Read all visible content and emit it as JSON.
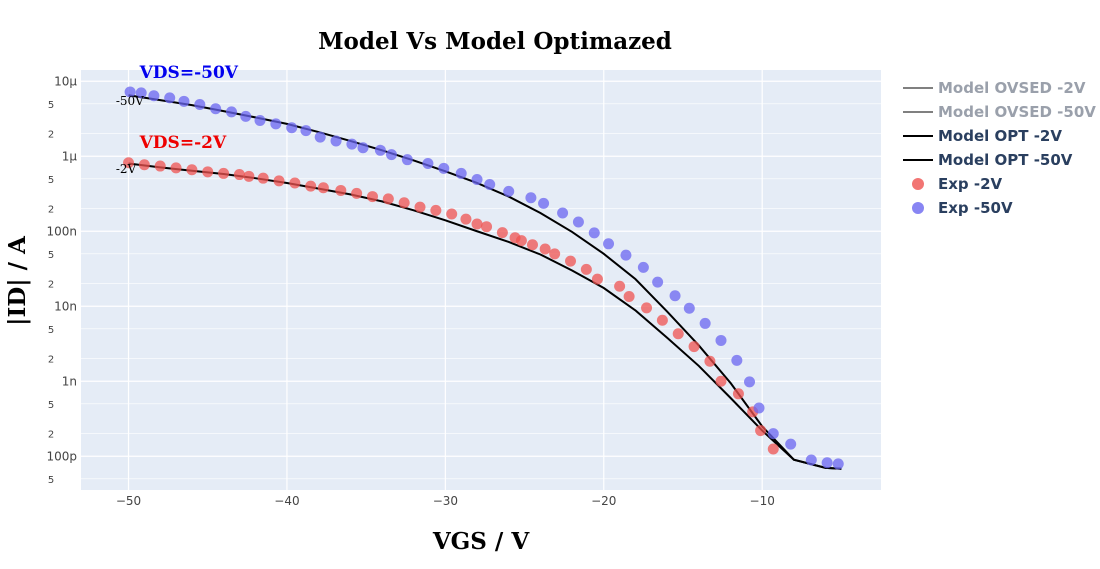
{
  "chart_data": {
    "type": "scatter",
    "title": "Model Vs Model Optimazed",
    "xlabel": "VGS / V",
    "ylabel": "|ID| / A",
    "xlim": [
      -53,
      -2.5
    ],
    "ylim_log10": [
      -10.45,
      -4.85
    ],
    "y_scale": "log",
    "grid": true,
    "legend_position": "right",
    "x_ticks": [
      -50,
      -40,
      -30,
      -20,
      -10
    ],
    "x_tick_labels": [
      "−50",
      "−40",
      "−30",
      "−20",
      "−10"
    ],
    "y_major_ticks": [
      {
        "value": 1e-05,
        "label": "10µ"
      },
      {
        "value": 1e-06,
        "label": "1µ"
      },
      {
        "value": 1e-07,
        "label": "100n"
      },
      {
        "value": 1e-08,
        "label": "10n"
      },
      {
        "value": 1e-09,
        "label": "1n"
      },
      {
        "value": 1e-10,
        "label": "100p"
      }
    ],
    "y_minor_ticks": [
      {
        "value": 5e-06,
        "label": "5"
      },
      {
        "value": 2e-06,
        "label": "2"
      },
      {
        "value": 5e-07,
        "label": "5"
      },
      {
        "value": 2e-07,
        "label": "2"
      },
      {
        "value": 5e-08,
        "label": "5"
      },
      {
        "value": 2e-08,
        "label": "2"
      },
      {
        "value": 5e-09,
        "label": "5"
      },
      {
        "value": 2e-09,
        "label": "2"
      },
      {
        "value": 5e-10,
        "label": "5"
      },
      {
        "value": 2e-10,
        "label": "2"
      },
      {
        "value": 5e-11,
        "label": "5"
      }
    ],
    "annotations": [
      {
        "text": "VDS=-50V",
        "x": -49.3,
        "y": 1.1e-05,
        "color": "#0000ee",
        "style": "big"
      },
      {
        "text": "VDS=-2V",
        "x": -49.3,
        "y": 1.28e-06,
        "color": "#ee0000",
        "style": "big"
      },
      {
        "text": "-50V",
        "x": -50.8,
        "y": 4.8e-06,
        "color": "#000000",
        "style": "small"
      },
      {
        "text": "-2V",
        "x": -50.8,
        "y": 6e-07,
        "color": "#000000",
        "style": "small"
      }
    ],
    "series": [
      {
        "name": "Model OVSED -2V",
        "kind": "line",
        "color": "#808080",
        "legend_text_color": "#9aa0ab",
        "x": [],
        "y": []
      },
      {
        "name": "Model OVSED -50V",
        "kind": "line",
        "color": "#808080",
        "legend_text_color": "#9aa0ab",
        "x": [],
        "y": []
      },
      {
        "name": "Model OPT -2V",
        "kind": "line",
        "color": "#000000",
        "legend_text_color": "#2a3f5f",
        "x": [
          -50,
          -48,
          -46,
          -44,
          -42,
          -40,
          -38,
          -36,
          -34,
          -32,
          -30,
          -28,
          -26,
          -24,
          -22,
          -20,
          -18,
          -16,
          -14,
          -12,
          -10,
          -8,
          -6,
          -5
        ],
        "y": [
          8e-07,
          7.1e-07,
          6.4e-07,
          5.8e-07,
          5.1e-07,
          4.4e-07,
          3.7e-07,
          3.1e-07,
          2.5e-07,
          1.9e-07,
          1.4e-07,
          1e-07,
          7.2e-08,
          4.9e-08,
          3e-08,
          1.75e-08,
          8.8e-09,
          3.8e-09,
          1.6e-09,
          6e-10,
          2.2e-10,
          9e-11,
          7e-11,
          6.8e-11
        ]
      },
      {
        "name": "Model OPT -50V",
        "kind": "line",
        "color": "#000000",
        "legend_text_color": "#2a3f5f",
        "x": [
          -50,
          -48,
          -46,
          -44,
          -42,
          -40,
          -38,
          -36,
          -34,
          -32,
          -30,
          -28,
          -26,
          -24,
          -22,
          -20,
          -18,
          -16,
          -14,
          -12,
          -10,
          -8,
          -6,
          -5
        ],
        "y": [
          6.5e-06,
          5.6e-06,
          4.8e-06,
          4e-06,
          3.3e-06,
          2.7e-06,
          2.1e-06,
          1.6e-06,
          1.2e-06,
          8.8e-07,
          6.3e-07,
          4.4e-07,
          2.9e-07,
          1.75e-07,
          9.8e-08,
          5e-08,
          2.3e-08,
          8.5e-09,
          3e-09,
          9.5e-10,
          2.5e-10,
          9e-11,
          7e-11,
          6.8e-11
        ]
      },
      {
        "name": "Exp  -2V",
        "kind": "marker",
        "color": "#ef5350",
        "legend_text_color": "#2a3f5f",
        "x": [
          -50,
          -49,
          -48,
          -47,
          -46,
          -45,
          -44,
          -43,
          -42.4,
          -41.5,
          -40.5,
          -39.5,
          -38.5,
          -37.7,
          -36.6,
          -35.6,
          -34.6,
          -33.6,
          -32.6,
          -31.6,
          -30.6,
          -29.6,
          -28.7,
          -28,
          -27.4,
          -26.4,
          -25.6,
          -25.2,
          -24.5,
          -23.7,
          -23.1,
          -22.1,
          -21.1,
          -20.4,
          -19,
          -18.4,
          -17.3,
          -16.3,
          -15.3,
          -14.3,
          -13.3,
          -12.6,
          -11.5,
          -10.6,
          -10.1,
          -9.3
        ],
        "y": [
          8.2e-07,
          7.7e-07,
          7.4e-07,
          7e-07,
          6.6e-07,
          6.2e-07,
          5.9e-07,
          5.7e-07,
          5.4e-07,
          5.1e-07,
          4.7e-07,
          4.4e-07,
          4e-07,
          3.8e-07,
          3.5e-07,
          3.2e-07,
          2.9e-07,
          2.7e-07,
          2.4e-07,
          2.1e-07,
          1.9e-07,
          1.7e-07,
          1.45e-07,
          1.25e-07,
          1.15e-07,
          9.6e-08,
          8.2e-08,
          7.5e-08,
          6.6e-08,
          5.8e-08,
          5e-08,
          4e-08,
          3.1e-08,
          2.3e-08,
          1.85e-08,
          1.35e-08,
          9.5e-09,
          6.5e-09,
          4.3e-09,
          2.9e-09,
          1.85e-09,
          1e-09,
          6.8e-10,
          3.9e-10,
          2.2e-10,
          1.25e-10
        ]
      },
      {
        "name": "Exp  -50V",
        "kind": "marker",
        "color": "#6a66f0",
        "legend_text_color": "#2a3f5f",
        "x": [
          -49.9,
          -49.2,
          -48.4,
          -47.4,
          -46.5,
          -45.5,
          -44.5,
          -43.5,
          -42.6,
          -41.7,
          -40.7,
          -39.7,
          -38.8,
          -37.9,
          -36.9,
          -35.9,
          -35.2,
          -34.1,
          -33.4,
          -32.4,
          -31.1,
          -30.1,
          -29,
          -28,
          -27.2,
          -26,
          -24.6,
          -23.8,
          -22.6,
          -21.6,
          -20.6,
          -19.7,
          -18.6,
          -17.5,
          -16.6,
          -15.5,
          -14.6,
          -13.6,
          -12.6,
          -11.6,
          -10.8,
          -10.2,
          -9.3,
          -8.2,
          -6.9,
          -5.9,
          -5.2
        ],
        "y": [
          7.2e-06,
          7e-06,
          6.4e-06,
          6e-06,
          5.4e-06,
          4.9e-06,
          4.3e-06,
          3.9e-06,
          3.4e-06,
          3e-06,
          2.7e-06,
          2.4e-06,
          2.2e-06,
          1.8e-06,
          1.6e-06,
          1.45e-06,
          1.3e-06,
          1.2e-06,
          1.05e-06,
          9e-07,
          8e-07,
          6.9e-07,
          5.9e-07,
          4.9e-07,
          4.2e-07,
          3.4e-07,
          2.8e-07,
          2.35e-07,
          1.75e-07,
          1.33e-07,
          9.5e-08,
          6.8e-08,
          4.8e-08,
          3.3e-08,
          2.1e-08,
          1.38e-08,
          9.4e-09,
          5.9e-09,
          3.5e-09,
          1.9e-09,
          9.8e-10,
          4.4e-10,
          2e-10,
          1.45e-10,
          8.9e-11,
          8.2e-11,
          7.9e-11
        ]
      }
    ]
  }
}
